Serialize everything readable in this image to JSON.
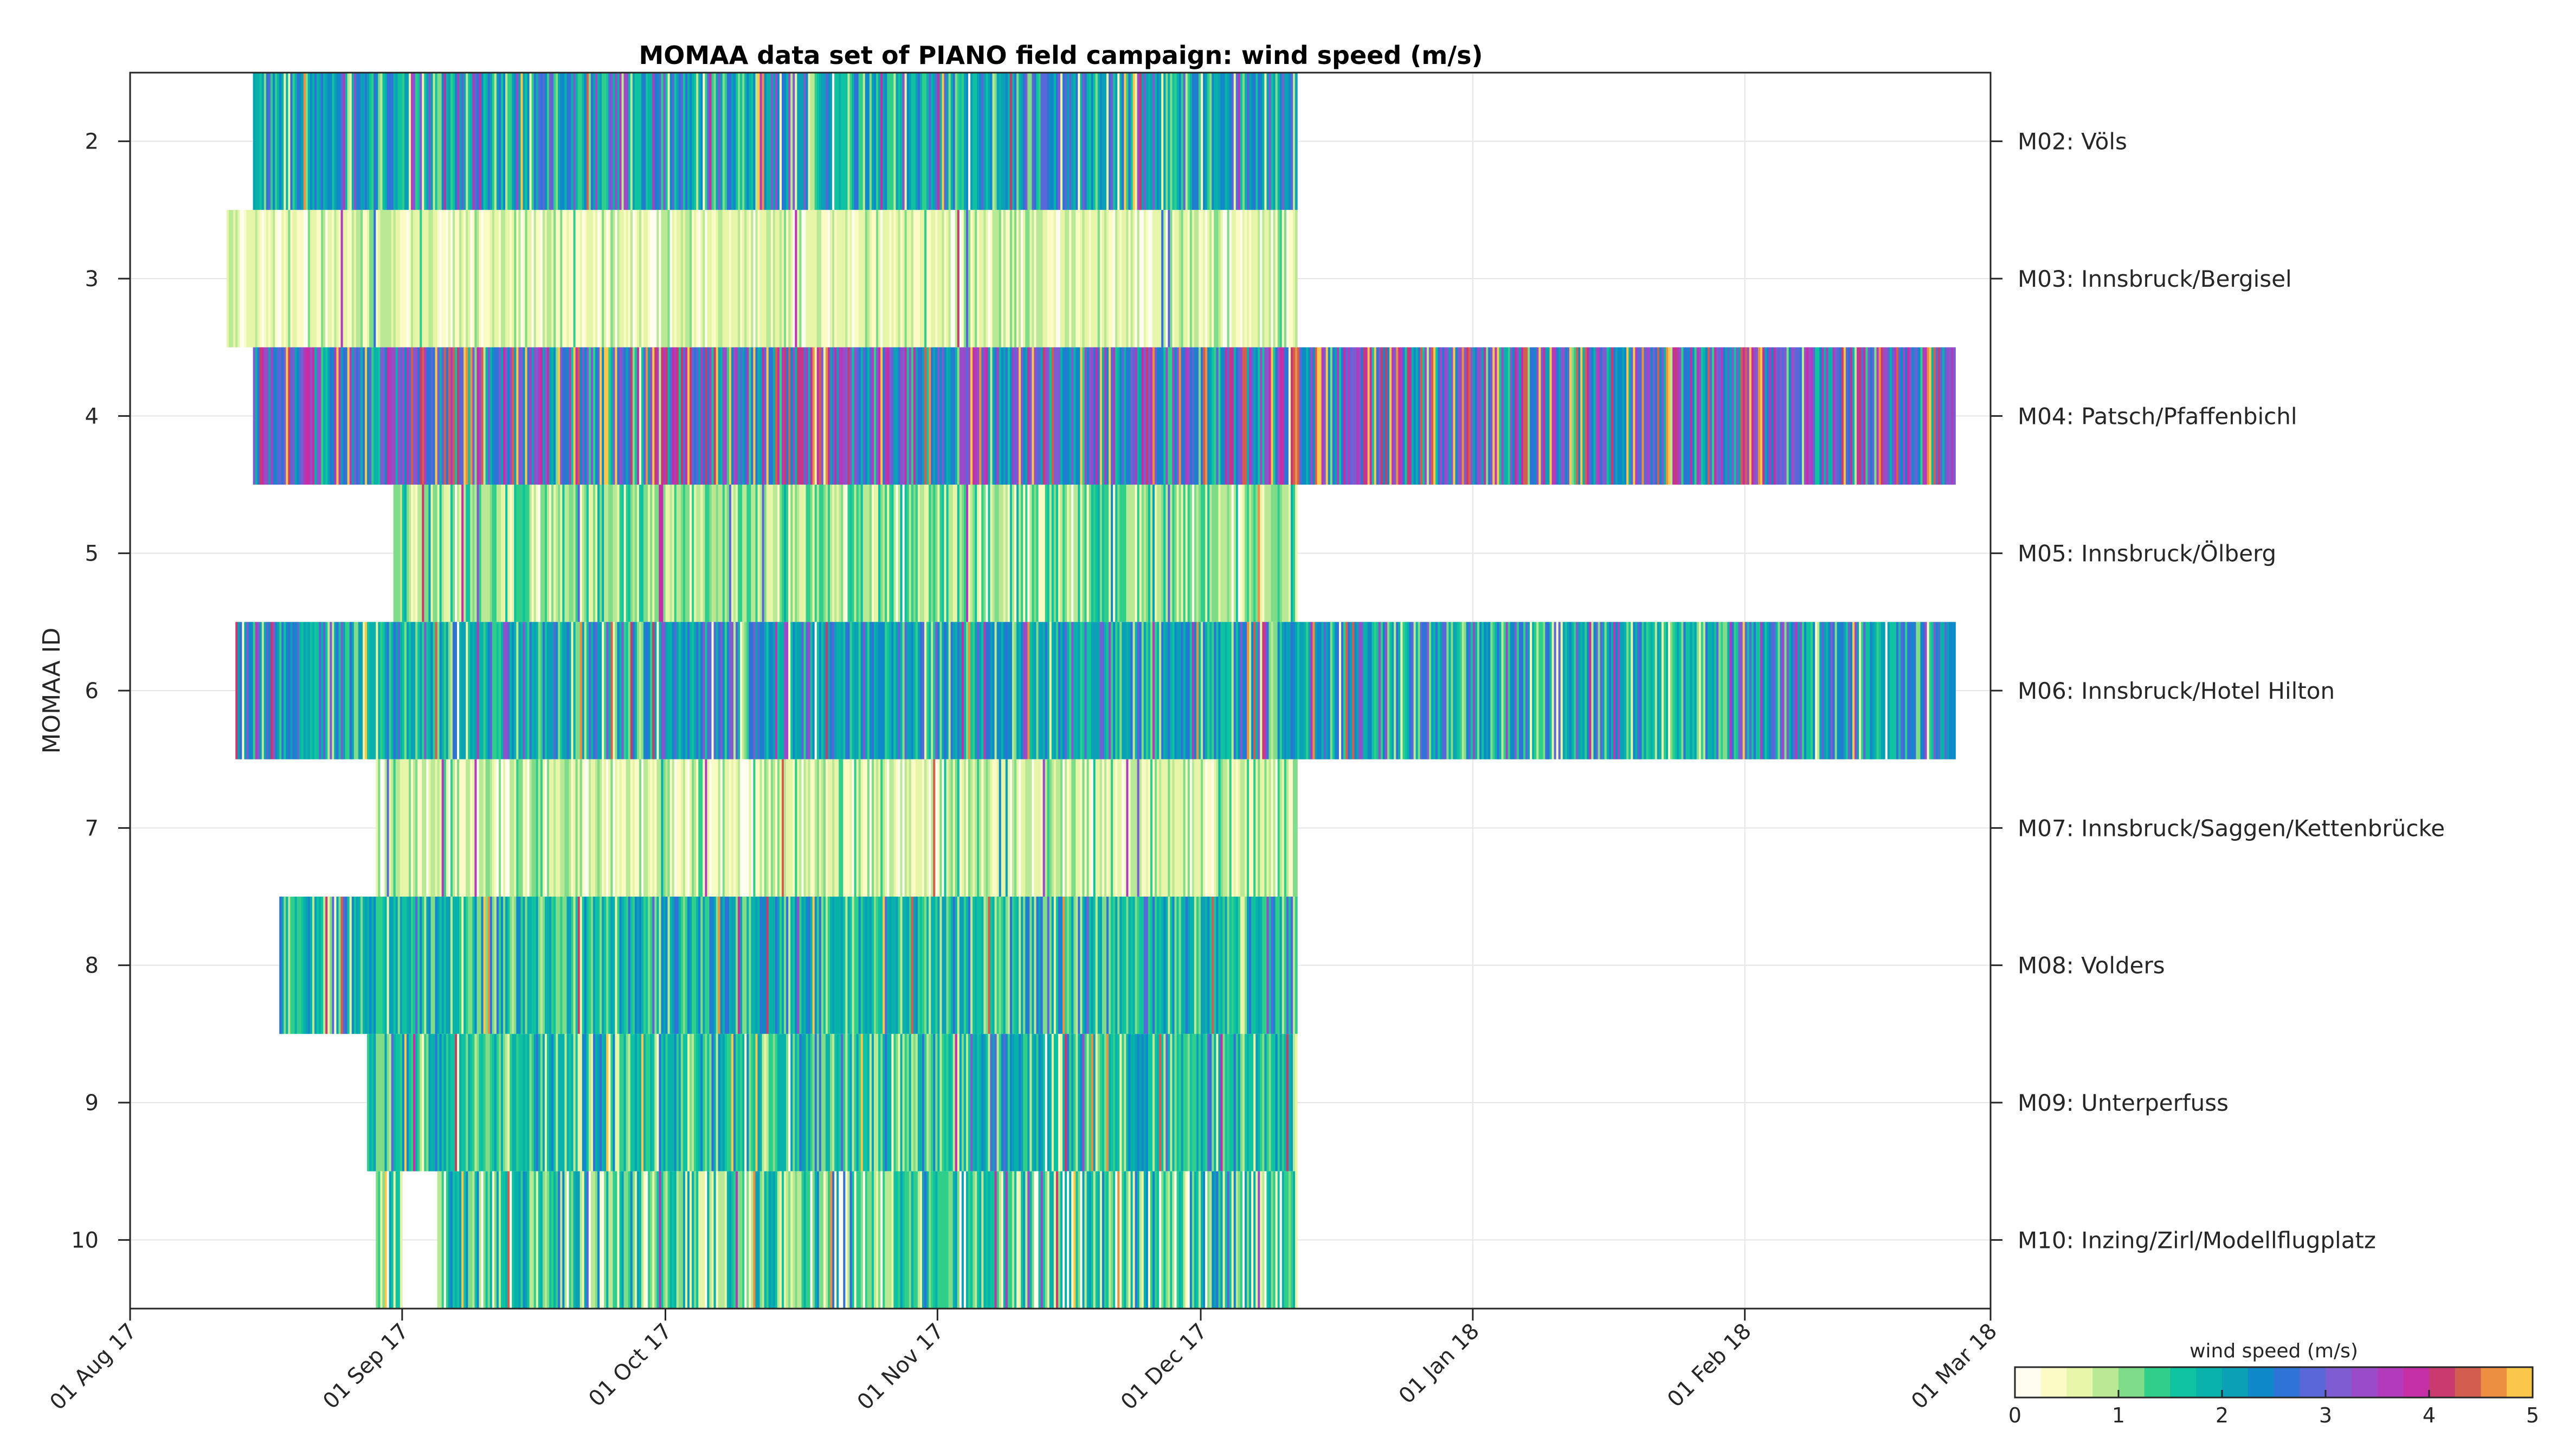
{
  "chart_data": {
    "type": "heatmap",
    "title": "MOMAA data set of PIANO field campaign: wind speed (m/s)",
    "ylabel": "MOMAA ID",
    "xlabel": "",
    "x_ticks": [
      "01 Aug 17",
      "01 Sep 17",
      "01 Oct 17",
      "01 Nov 17",
      "01 Dec 17",
      "01 Jan 18",
      "01 Feb 18",
      "01 Mar 18"
    ],
    "xlim": [
      "2017-08-01",
      "2018-03-01"
    ],
    "y_ticks": [
      2,
      3,
      4,
      5,
      6,
      7,
      8,
      9,
      10
    ],
    "ylim": [
      1.5,
      10.5
    ],
    "y_reversed": true,
    "grid": true,
    "colorbar": {
      "label": "wind speed (m/s)",
      "ticks": [
        0,
        1,
        2,
        3,
        4,
        5
      ],
      "range": [
        0,
        5
      ],
      "colors": [
        "#fffcf0",
        "#fbfbc6",
        "#e6f5a8",
        "#b9e995",
        "#7fdc88",
        "#2fcf8b",
        "#0fc2a0",
        "#08b2aa",
        "#0aa0b5",
        "#1089c9",
        "#2f73d7",
        "#5868d6",
        "#7d5bd0",
        "#9a4cc8",
        "#b23bbd",
        "#c42fa6",
        "#c93a6f",
        "#d35e4f",
        "#ec8f40",
        "#fbc74a"
      ]
    },
    "series": [
      {
        "name": "M02: Völs",
        "id": 2,
        "start": "2017-08-15",
        "end": "2017-12-12",
        "typical_speed": 2.0,
        "spread": 0.9
      },
      {
        "name": "M03: Innsbruck/Bergisel",
        "id": 3,
        "start": "2017-08-12",
        "end": "2017-12-12",
        "typical_speed": 0.6,
        "spread": 0.35
      },
      {
        "name": "M04: Patsch/Pfaffenbichl",
        "id": 4,
        "start": "2017-08-15",
        "end": "2018-02-25",
        "typical_speed": 3.0,
        "spread": 1.2
      },
      {
        "name": "M05: Innsbruck/Ölberg",
        "id": 5,
        "start": "2017-08-31",
        "end": "2017-12-12",
        "typical_speed": 1.0,
        "spread": 0.5
      },
      {
        "name": "M06: Innsbruck/Hotel Hilton",
        "id": 6,
        "start": "2017-08-13",
        "end": "2018-02-25",
        "typical_speed": 2.0,
        "spread": 0.9
      },
      {
        "name": "M07: Innsbruck/Saggen/Kettenbrücke",
        "id": 7,
        "start": "2017-08-29",
        "end": "2017-12-12",
        "typical_speed": 0.7,
        "spread": 0.45
      },
      {
        "name": "M08: Volders",
        "id": 8,
        "start": "2017-08-18",
        "end": "2017-12-12",
        "typical_speed": 1.7,
        "spread": 0.7
      },
      {
        "name": "M09: Unterperfuss",
        "id": 9,
        "start": "2017-08-28",
        "end": "2017-12-12",
        "typical_speed": 1.6,
        "spread": 0.7
      },
      {
        "name": "M10: Inzing/Zirl/Modellflugplatz",
        "id": 10,
        "start": "2017-08-29",
        "end": "2017-12-12",
        "typical_speed": 1.3,
        "spread": 0.8,
        "gap": [
          "2017-09-01",
          "2017-09-05"
        ]
      }
    ]
  }
}
